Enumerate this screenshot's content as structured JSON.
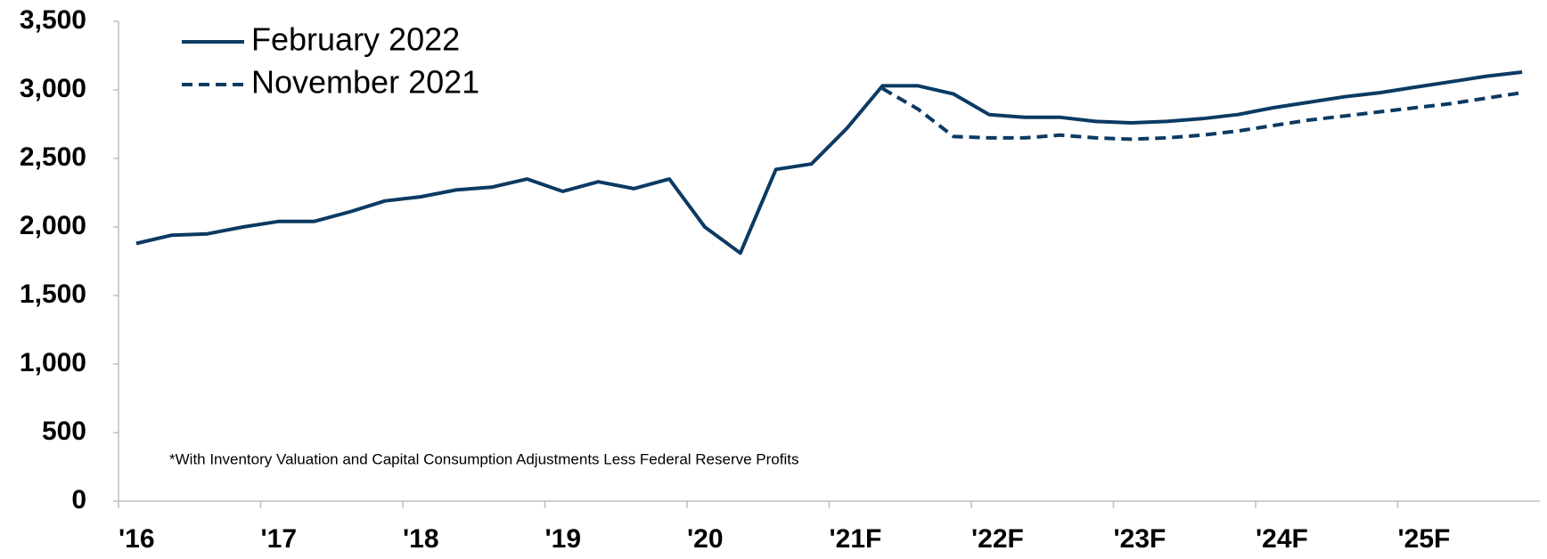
{
  "chart_data": {
    "type": "line",
    "note": "*With Inventory Valuation and Capital Consumption Adjustments Less Federal Reserve Profits",
    "categories": [
      "'16",
      null,
      null,
      null,
      "'17",
      null,
      null,
      null,
      "'18",
      null,
      null,
      null,
      "'19",
      null,
      null,
      null,
      "'20",
      null,
      null,
      null,
      "'21F",
      null,
      null,
      null,
      "'22F",
      null,
      null,
      null,
      "'23F",
      null,
      null,
      null,
      "'24F",
      null,
      null,
      null,
      "'25F",
      null,
      null,
      null
    ],
    "series": [
      {
        "name": "February 2022",
        "color": "#0b3a63",
        "dash": false,
        "values": [
          1880,
          1940,
          1950,
          2000,
          2040,
          2040,
          2110,
          2190,
          2220,
          2270,
          2290,
          2350,
          2260,
          2330,
          2280,
          2350,
          2000,
          1810,
          2420,
          2460,
          2720,
          3030,
          3030,
          2970,
          2820,
          2800,
          2800,
          2770,
          2760,
          2770,
          2790,
          2820,
          2870,
          2910,
          2950,
          2980,
          3020,
          3060,
          3100,
          3130
        ]
      },
      {
        "name": "November 2021",
        "color": "#0b3a63",
        "dash": true,
        "values": [
          null,
          null,
          null,
          null,
          null,
          null,
          null,
          null,
          null,
          null,
          null,
          null,
          null,
          null,
          null,
          null,
          null,
          null,
          null,
          null,
          null,
          3010,
          2860,
          2660,
          2650,
          2650,
          2670,
          2650,
          2640,
          2650,
          2670,
          2700,
          2740,
          2780,
          2810,
          2840,
          2870,
          2900,
          2940,
          2980
        ]
      }
    ],
    "ylim": [
      0,
      3500
    ],
    "yticks": [
      0,
      500,
      {
        "value": 1000,
        "label": "1,000"
      },
      {
        "value": 1500,
        "label": "1,500"
      },
      {
        "value": 2000,
        "label": "2,000"
      },
      {
        "value": 2500,
        "label": "2,500"
      },
      {
        "value": 3000,
        "label": "3,000"
      },
      {
        "value": 3500,
        "label": "3,500"
      }
    ],
    "grid": false,
    "legend": "top-left"
  }
}
